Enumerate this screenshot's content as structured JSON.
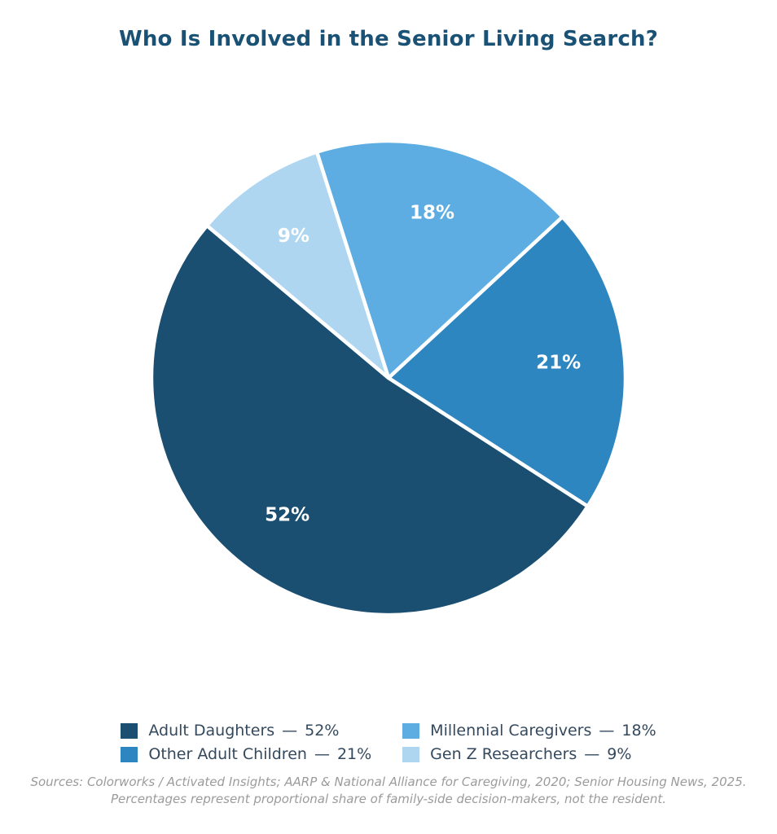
{
  "header": {
    "title": "Who Is Involved in the Senior Living Search?",
    "title_color": "#1a5276"
  },
  "chart_data": {
    "type": "pie",
    "title": "Who Is Involved in the Senior Living Search?",
    "segments": [
      {
        "label": "Adult Daughters",
        "value": 52,
        "pct_label": "52%",
        "color": "#1b4f72"
      },
      {
        "label": "Other Adult Children",
        "value": 21,
        "pct_label": "21%",
        "color": "#2e86c1"
      },
      {
        "label": "Millennial Caregivers",
        "value": 18,
        "pct_label": "18%",
        "color": "#5dade2"
      },
      {
        "label": "Gen Z Researchers",
        "value": 9,
        "pct_label": "9%",
        "color": "#aed6f1"
      }
    ],
    "start_angle_deg": 140,
    "direction": "counterclockwise",
    "slice_label_color": "#ffffff",
    "slice_gap_color": "#ffffff",
    "label_distance": 0.72,
    "legend_position": "bottom",
    "legend_columns": 2
  },
  "legend": {
    "separator": "—",
    "text_color": "#34495e",
    "items": [
      {
        "label": "Adult Daughters",
        "value_text": "52%",
        "color": "#1b4f72"
      },
      {
        "label": "Other Adult Children",
        "value_text": "21%",
        "color": "#2e86c1"
      },
      {
        "label": "Millennial Caregivers",
        "value_text": "18%",
        "color": "#5dade2"
      },
      {
        "label": "Gen Z Researchers",
        "value_text": "9%",
        "color": "#aed6f1"
      }
    ]
  },
  "footnote": {
    "color": "#9b9b9b",
    "line1": "Sources: Colorworks / Activated Insights; AARP & National Alliance for Caregiving, 2020; Senior Housing News, 2025.",
    "line2": "Percentages represent proportional share of family-side decision-makers, not the resident."
  }
}
